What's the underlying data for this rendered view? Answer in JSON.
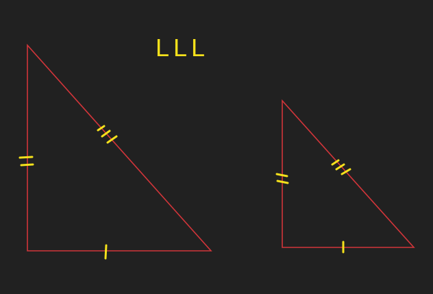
{
  "title": "LLL"
}
